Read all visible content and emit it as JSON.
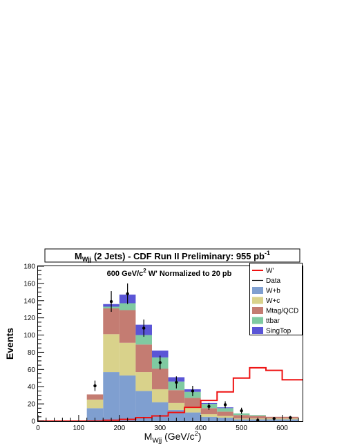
{
  "chart_data": {
    "type": "bar",
    "stacked": true,
    "title_main": "M",
    "title_sub": "Wjj",
    "title_rest": " (2 Jets) - CDF Run II Preliminary: 955 pb",
    "title_sup": "-1",
    "annotation_pre": "600 GeV/c",
    "annotation_sup": "2",
    "annotation_post": " W' Normalized to 20 pb",
    "xlabel_main": "M",
    "xlabel_sub": "Wjj",
    "xlabel_rest": "  (GeV/c",
    "xlabel_sup": "2",
    "xlabel_end": ")",
    "ylabel": "Events",
    "xlim": [
      0,
      650
    ],
    "ylim": [
      0,
      180
    ],
    "x_ticks": [
      0,
      100,
      200,
      300,
      400,
      500,
      600
    ],
    "y_ticks": [
      0,
      20,
      40,
      60,
      80,
      100,
      120,
      140,
      160,
      180
    ],
    "legend_position": "top-right",
    "bin_edges": [
      120,
      160,
      200,
      240,
      280,
      320,
      360,
      400,
      440,
      480,
      520,
      560,
      600,
      640
    ],
    "series": [
      {
        "name": "W+b",
        "color": "#7f9fd0",
        "values": [
          15,
          57,
          53,
          35,
          22,
          13,
          10,
          5,
          4,
          2,
          2,
          2,
          2
        ]
      },
      {
        "name": "W+c",
        "color": "#d9d28b",
        "values": [
          10,
          44,
          38,
          22,
          15,
          8,
          6,
          3,
          2,
          1,
          1,
          1,
          1
        ]
      },
      {
        "name": "Mtag/QCD",
        "color": "#c47c72",
        "values": [
          6,
          30,
          38,
          32,
          24,
          15,
          11,
          7,
          5,
          4,
          3,
          2,
          2
        ]
      },
      {
        "name": "ttbar",
        "color": "#7fcaa1",
        "values": [
          0,
          2,
          8,
          11,
          13,
          10,
          7,
          5,
          4,
          2,
          1,
          0,
          0
        ]
      },
      {
        "name": "SingTop",
        "color": "#5a55d6",
        "values": [
          0,
          3,
          10,
          12,
          8,
          5,
          3,
          1,
          1,
          0,
          0,
          0,
          0
        ]
      }
    ],
    "signal": {
      "name": "W'",
      "color": "#ee1111",
      "edges": [
        0,
        160,
        200,
        240,
        280,
        320,
        360,
        400,
        440,
        480,
        520,
        560,
        600,
        640,
        650
      ],
      "values": [
        0,
        1,
        2,
        4,
        6,
        10,
        16,
        24,
        34,
        50,
        62,
        59,
        48,
        48
      ]
    },
    "data_points": {
      "name": "Data",
      "points": [
        {
          "x": 140,
          "y": 41,
          "err": 6
        },
        {
          "x": 180,
          "y": 139,
          "err": 12
        },
        {
          "x": 220,
          "y": 148,
          "err": 12
        },
        {
          "x": 260,
          "y": 108,
          "err": 10
        },
        {
          "x": 300,
          "y": 68,
          "err": 8
        },
        {
          "x": 340,
          "y": 45,
          "err": 7
        },
        {
          "x": 380,
          "y": 35,
          "err": 6
        },
        {
          "x": 420,
          "y": 17,
          "err": 4
        },
        {
          "x": 460,
          "y": 19,
          "err": 4
        },
        {
          "x": 500,
          "y": 12,
          "err": 3.5
        },
        {
          "x": 540,
          "y": 1,
          "err": 1
        },
        {
          "x": 580,
          "y": 3,
          "err": 1.7
        },
        {
          "x": 620,
          "y": 4,
          "err": 2
        }
      ]
    }
  }
}
